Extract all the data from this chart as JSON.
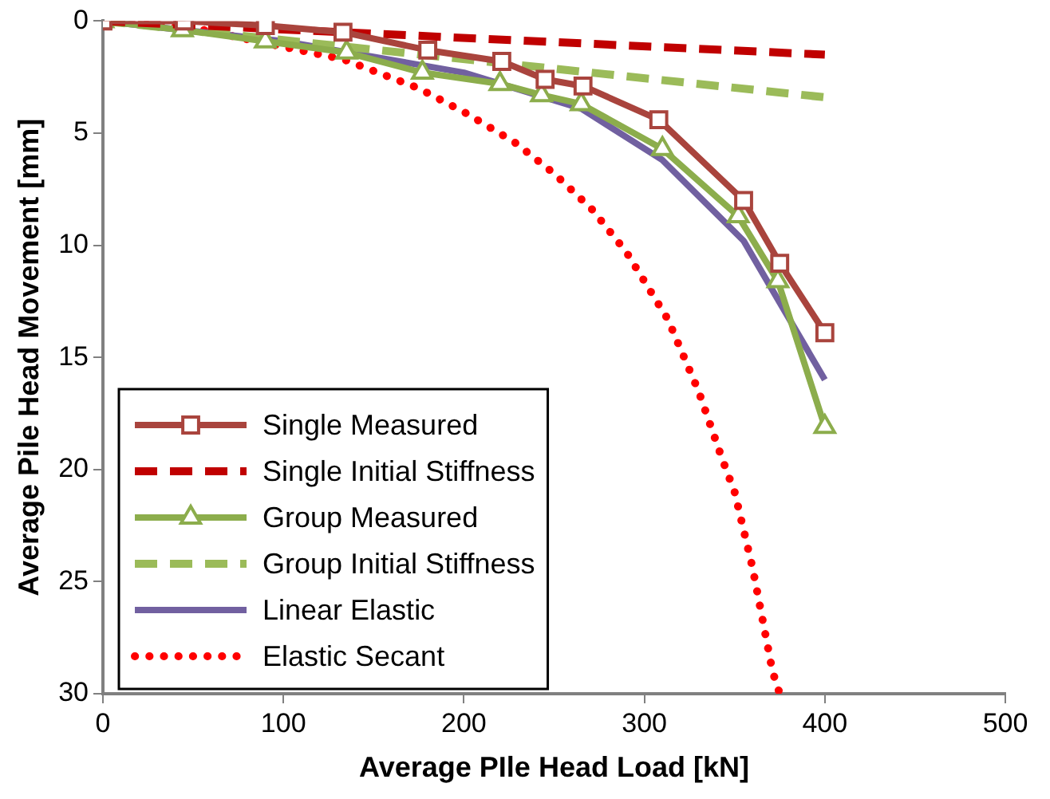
{
  "chart_data": {
    "type": "line",
    "xlabel": "Average PIle Head Load [kN]",
    "ylabel": "Average Pile Head Movement [mm]",
    "xlim": [
      0,
      500
    ],
    "xticks": [
      0,
      100,
      200,
      300,
      400,
      500
    ],
    "ylim": [
      30,
      0
    ],
    "yticks": [
      0,
      5,
      10,
      15,
      20,
      25,
      30
    ],
    "grid": false,
    "legend": "bottom left",
    "series": [
      {
        "name": "Single Measured",
        "color": "#a9443d",
        "marker": "square",
        "line_style": "solid",
        "x": [
          0,
          45,
          90,
          133,
          180,
          221,
          245,
          266,
          308,
          355,
          375,
          400
        ],
        "values": [
          0,
          0,
          0.2,
          0.5,
          1.3,
          1.8,
          2.6,
          2.9,
          4.4,
          8.0,
          10.8,
          13.9
        ]
      },
      {
        "name": "Single Initial Stiffness",
        "color": "#c00000",
        "marker": "none",
        "line_style": "dashed",
        "x": [
          0,
          400
        ],
        "values": [
          0,
          1.5
        ]
      },
      {
        "name": "Group Measured",
        "color": "#8cad4c",
        "marker": "triangle",
        "line_style": "solid",
        "x": [
          0,
          44,
          90,
          135,
          177,
          220,
          243,
          265,
          310,
          352,
          374,
          400
        ],
        "values": [
          0,
          0.4,
          0.9,
          1.4,
          2.3,
          2.8,
          3.3,
          3.7,
          5.7,
          8.7,
          11.6,
          18.1
        ]
      },
      {
        "name": "Group Initial Stiffness",
        "color": "#9bbb59",
        "marker": "none",
        "line_style": "dashed",
        "x": [
          0,
          400
        ],
        "values": [
          0,
          3.4
        ]
      },
      {
        "name": "Linear Elastic",
        "color": "#7160a0",
        "marker": "none",
        "line_style": "solid",
        "x": [
          0,
          100,
          200,
          265,
          310,
          355,
          400
        ],
        "values": [
          0,
          0.9,
          2.3,
          3.9,
          6.2,
          9.8,
          16.0
        ]
      },
      {
        "name": "Elastic Secant",
        "color": "#ff0000",
        "marker": "none",
        "line_style": "dotted",
        "x": [
          0,
          50,
          91,
          133,
          175,
          201,
          228,
          250,
          271,
          290,
          313,
          330,
          343,
          350,
          360,
          371,
          375
        ],
        "values": [
          0,
          0.3,
          1.0,
          1.7,
          3.0,
          4.1,
          5.4,
          6.8,
          8.4,
          10.3,
          13.3,
          16.5,
          19.5,
          21,
          24.4,
          29,
          30
        ]
      }
    ]
  }
}
